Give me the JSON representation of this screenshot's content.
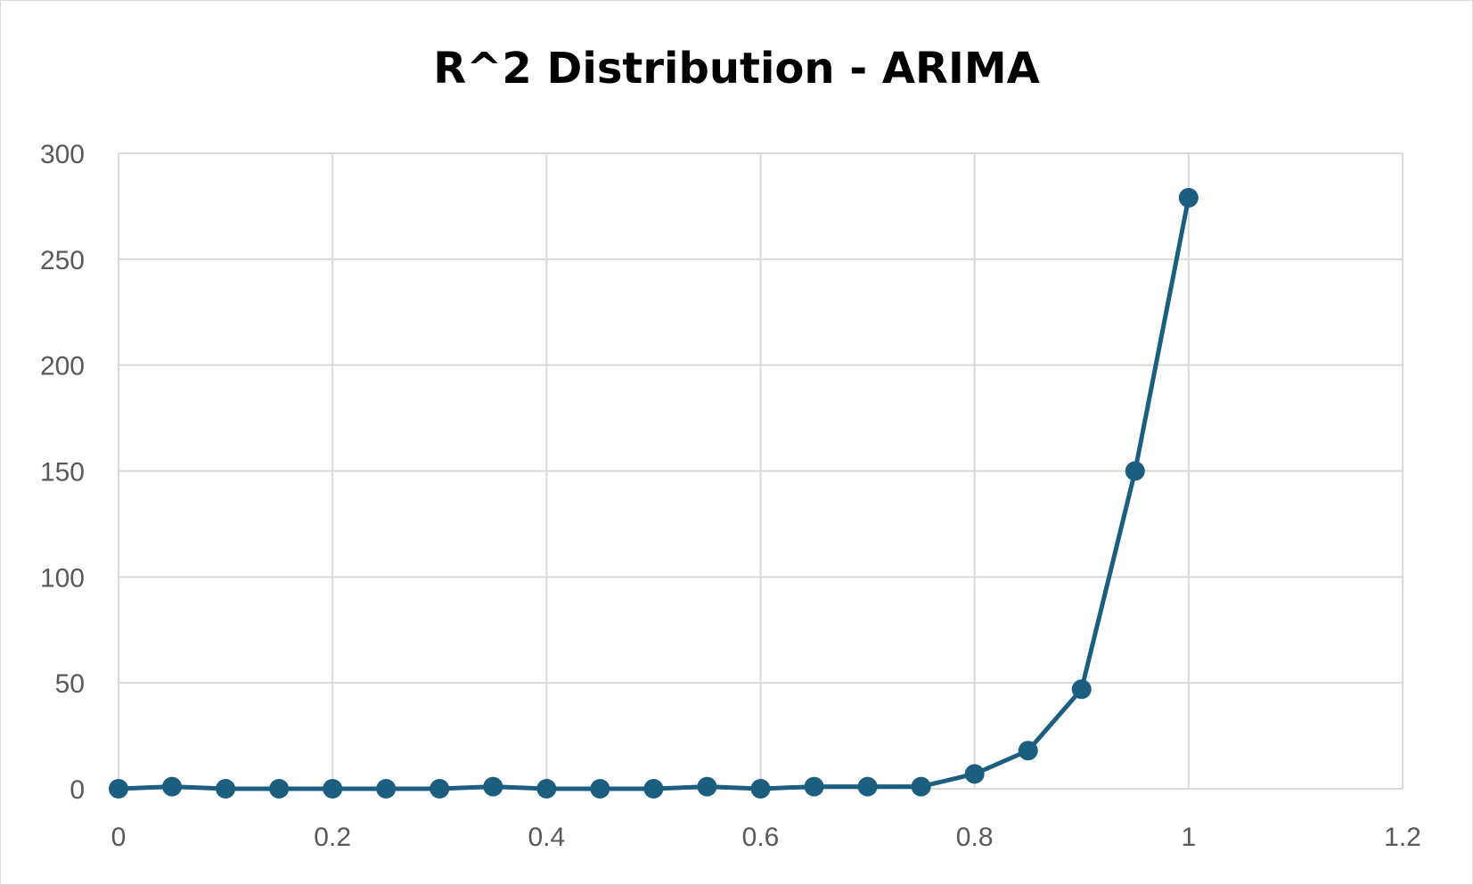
{
  "chart_data": {
    "type": "line",
    "title": "R^2 Distribution - ARIMA",
    "xlabel": "",
    "ylabel": "",
    "xlim": [
      0,
      1.2
    ],
    "ylim": [
      0,
      300
    ],
    "x_ticks": [
      "0",
      "0.2",
      "0.4",
      "0.6",
      "0.8",
      "1",
      "1.2"
    ],
    "y_ticks": [
      "0",
      "50",
      "100",
      "150",
      "200",
      "250",
      "300"
    ],
    "grid": true,
    "legend": "none",
    "series": [
      {
        "color": "#1b5e80",
        "marker": "circle",
        "x": [
          0,
          0.05,
          0.1,
          0.15,
          0.2,
          0.25,
          0.3,
          0.35,
          0.4,
          0.45,
          0.5,
          0.55,
          0.6,
          0.65,
          0.7,
          0.75,
          0.8,
          0.85,
          0.9,
          0.95,
          1
        ],
        "y": [
          0,
          1,
          0,
          0,
          0,
          0,
          0,
          1,
          0,
          0,
          0,
          1,
          0,
          1,
          1,
          1,
          7,
          18,
          47,
          150,
          279
        ]
      }
    ]
  },
  "colors": {
    "grid": "#d9d9d9",
    "tick_text": "#595959",
    "title_text": "#000000"
  }
}
